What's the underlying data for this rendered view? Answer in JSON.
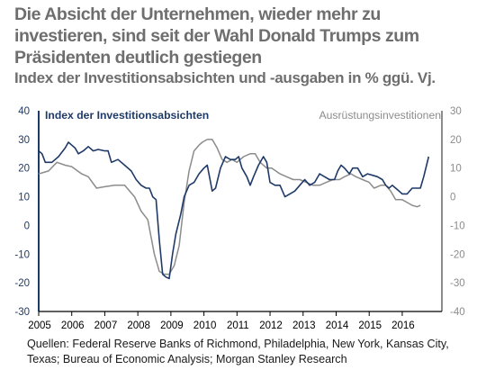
{
  "title": "Die Absicht der Unternehmen, wieder mehr zu investieren, sind seit der Wahl Donald Trumps zum Präsidenten deutlich gestiegen",
  "subtitle": "Index der Investitionsabsichten und -ausgaben in % ggü. Vj.",
  "source": "Quellen: Federal Reserve Banks of Richmond, Philadelphia, New York, Kansas City, Texas; Bureau of Economic Analysis; Morgan Stanley Research",
  "colors": {
    "navy": "#1f3a68",
    "gray": "#8c8c8c",
    "axis": "#000000"
  },
  "chart_data": {
    "type": "line",
    "x_ticks": [
      "2005",
      "2006",
      "2007",
      "2008",
      "2009",
      "2010",
      "2011",
      "2012",
      "2013",
      "2014",
      "2015",
      "2016"
    ],
    "xlim": [
      2005.0,
      2017.2
    ],
    "left_axis": {
      "ylim": [
        -30,
        40
      ],
      "ticks": [
        "40",
        "30",
        "20",
        "10",
        "0",
        "-10",
        "-20",
        "-30"
      ]
    },
    "right_axis": {
      "ylim": [
        -40,
        30
      ],
      "ticks": [
        "30",
        "20",
        "10",
        "0",
        "-10",
        "-20",
        "-30",
        "-40"
      ]
    },
    "grid": false,
    "series": [
      {
        "name": "Index der Investitionsabsichten",
        "axis": "left",
        "color": "#1f3a68",
        "points": [
          [
            2005.0,
            26
          ],
          [
            2005.1,
            25
          ],
          [
            2005.2,
            22
          ],
          [
            2005.4,
            22
          ],
          [
            2005.6,
            24
          ],
          [
            2005.8,
            27
          ],
          [
            2005.9,
            29
          ],
          [
            2006.0,
            28
          ],
          [
            2006.1,
            27
          ],
          [
            2006.2,
            25
          ],
          [
            2006.35,
            26
          ],
          [
            2006.5,
            27.5
          ],
          [
            2006.65,
            26
          ],
          [
            2006.8,
            26.5
          ],
          [
            2007.0,
            26
          ],
          [
            2007.1,
            26
          ],
          [
            2007.2,
            22
          ],
          [
            2007.4,
            23
          ],
          [
            2007.6,
            21
          ],
          [
            2007.8,
            19
          ],
          [
            2007.95,
            16
          ],
          [
            2008.1,
            14
          ],
          [
            2008.25,
            13
          ],
          [
            2008.35,
            13
          ],
          [
            2008.45,
            10
          ],
          [
            2008.55,
            9
          ],
          [
            2008.65,
            -5
          ],
          [
            2008.75,
            -17
          ],
          [
            2008.85,
            -18
          ],
          [
            2008.95,
            -18.5
          ],
          [
            2009.05,
            -10
          ],
          [
            2009.15,
            -3
          ],
          [
            2009.3,
            4
          ],
          [
            2009.4,
            10
          ],
          [
            2009.55,
            14
          ],
          [
            2009.7,
            15
          ],
          [
            2009.85,
            18
          ],
          [
            2010.0,
            20
          ],
          [
            2010.1,
            21
          ],
          [
            2010.25,
            12
          ],
          [
            2010.35,
            13
          ],
          [
            2010.5,
            20
          ],
          [
            2010.65,
            24
          ],
          [
            2010.8,
            23
          ],
          [
            2010.95,
            23
          ],
          [
            2011.05,
            24
          ],
          [
            2011.15,
            20
          ],
          [
            2011.3,
            17
          ],
          [
            2011.4,
            14
          ],
          [
            2011.5,
            17
          ],
          [
            2011.65,
            21
          ],
          [
            2011.8,
            24
          ],
          [
            2011.9,
            22
          ],
          [
            2012.0,
            15
          ],
          [
            2012.15,
            14
          ],
          [
            2012.3,
            14
          ],
          [
            2012.45,
            10
          ],
          [
            2012.6,
            11
          ],
          [
            2012.75,
            12
          ],
          [
            2012.9,
            14
          ],
          [
            2013.05,
            16
          ],
          [
            2013.2,
            14
          ],
          [
            2013.35,
            15
          ],
          [
            2013.5,
            18
          ],
          [
            2013.65,
            17
          ],
          [
            2013.8,
            16
          ],
          [
            2013.95,
            16
          ],
          [
            2014.05,
            19
          ],
          [
            2014.15,
            21
          ],
          [
            2014.25,
            20
          ],
          [
            2014.4,
            18
          ],
          [
            2014.5,
            20
          ],
          [
            2014.65,
            20
          ],
          [
            2014.8,
            17
          ],
          [
            2014.95,
            18
          ],
          [
            2015.1,
            17.5
          ],
          [
            2015.25,
            17
          ],
          [
            2015.4,
            16
          ],
          [
            2015.5,
            14
          ],
          [
            2015.6,
            13
          ],
          [
            2015.7,
            14
          ],
          [
            2015.8,
            13
          ],
          [
            2015.9,
            12
          ],
          [
            2016.0,
            11
          ],
          [
            2016.15,
            11
          ],
          [
            2016.3,
            13
          ],
          [
            2016.45,
            13
          ],
          [
            2016.55,
            13
          ],
          [
            2016.65,
            17
          ],
          [
            2016.8,
            24
          ]
        ]
      },
      {
        "name": "Ausrüstungsinvestitionen",
        "axis": "right",
        "color": "#8c8c8c",
        "points": [
          [
            2005.0,
            8
          ],
          [
            2005.3,
            9
          ],
          [
            2005.55,
            12
          ],
          [
            2005.8,
            11
          ],
          [
            2006.0,
            10.5
          ],
          [
            2006.3,
            8
          ],
          [
            2006.5,
            7
          ],
          [
            2006.75,
            3
          ],
          [
            2007.0,
            3.5
          ],
          [
            2007.3,
            4
          ],
          [
            2007.6,
            4
          ],
          [
            2007.9,
            0
          ],
          [
            2008.1,
            -5
          ],
          [
            2008.3,
            -8
          ],
          [
            2008.5,
            -20
          ],
          [
            2008.65,
            -26
          ],
          [
            2008.8,
            -27
          ],
          [
            2008.95,
            -27
          ],
          [
            2009.1,
            -24
          ],
          [
            2009.25,
            -17
          ],
          [
            2009.4,
            -2
          ],
          [
            2009.55,
            9
          ],
          [
            2009.7,
            16
          ],
          [
            2009.85,
            18
          ],
          [
            2009.95,
            19
          ],
          [
            2010.1,
            20
          ],
          [
            2010.25,
            20
          ],
          [
            2010.4,
            17
          ],
          [
            2010.55,
            13
          ],
          [
            2010.7,
            12
          ],
          [
            2010.85,
            13
          ],
          [
            2011.0,
            12
          ],
          [
            2011.2,
            14
          ],
          [
            2011.4,
            15
          ],
          [
            2011.55,
            15
          ],
          [
            2011.7,
            12
          ],
          [
            2011.9,
            10
          ],
          [
            2012.05,
            10
          ],
          [
            2012.3,
            8
          ],
          [
            2012.5,
            7
          ],
          [
            2012.7,
            6
          ],
          [
            2012.9,
            6
          ],
          [
            2013.1,
            5
          ],
          [
            2013.3,
            4
          ],
          [
            2013.5,
            4
          ],
          [
            2013.7,
            5
          ],
          [
            2013.9,
            6
          ],
          [
            2014.1,
            6
          ],
          [
            2014.25,
            7
          ],
          [
            2014.45,
            8
          ],
          [
            2014.6,
            7
          ],
          [
            2014.8,
            6
          ],
          [
            2015.0,
            5
          ],
          [
            2015.15,
            3
          ],
          [
            2015.35,
            4
          ],
          [
            2015.5,
            4
          ],
          [
            2015.65,
            2
          ],
          [
            2015.8,
            -1
          ],
          [
            2016.0,
            -1
          ],
          [
            2016.15,
            -2
          ],
          [
            2016.3,
            -3
          ],
          [
            2016.45,
            -3.5
          ],
          [
            2016.55,
            -3
          ]
        ]
      }
    ]
  }
}
